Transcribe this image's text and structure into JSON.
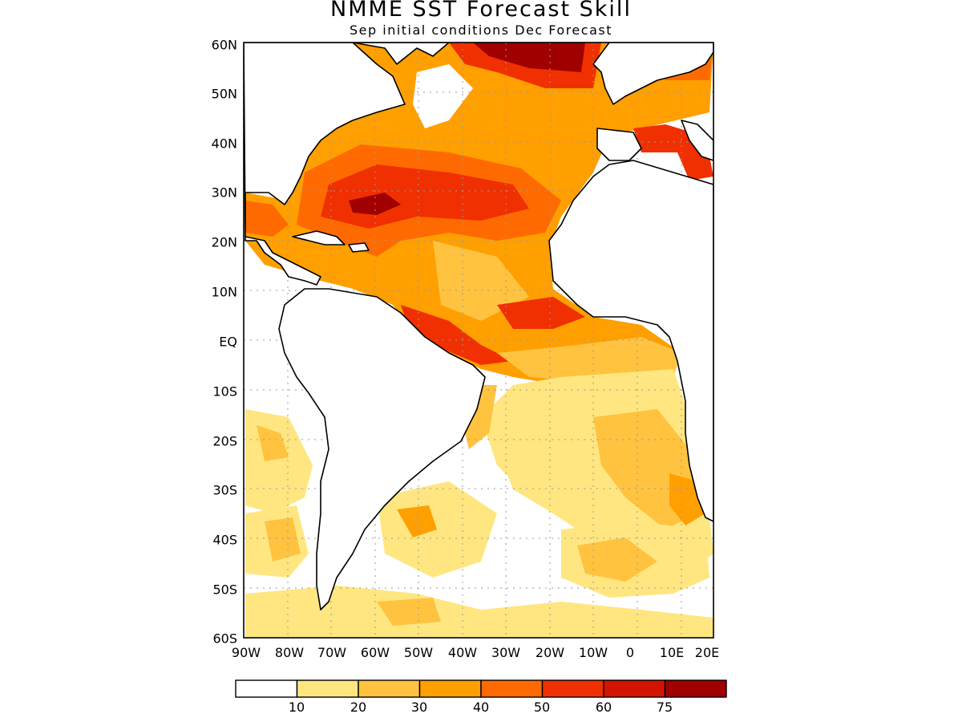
{
  "map": {
    "title": "NMME SST Forecast Skill",
    "subtitle": "Sep initial conditions  Dec Forecast",
    "lat_labels": [
      "60N",
      "50N",
      "40N",
      "30N",
      "20N",
      "10N",
      "EQ",
      "10S",
      "20S",
      "30S",
      "40S",
      "50S",
      "60S"
    ],
    "lon_labels": [
      "90W",
      "80W",
      "70W",
      "60W",
      "50W",
      "40W",
      "30W",
      "20W",
      "10W",
      "0",
      "10E",
      "20E"
    ],
    "extent": {
      "lon": [
        -90,
        20
      ],
      "lat": [
        -60,
        60
      ]
    },
    "grid": true,
    "colorbar": {
      "labels": [
        "10",
        "20",
        "30",
        "40",
        "50",
        "60",
        "75"
      ],
      "colors": [
        "#ffffff",
        "#ffe680",
        "#ffc340",
        "#ff9f00",
        "#ff6a00",
        "#f03000",
        "#d21400",
        "#a00000"
      ]
    }
  }
}
